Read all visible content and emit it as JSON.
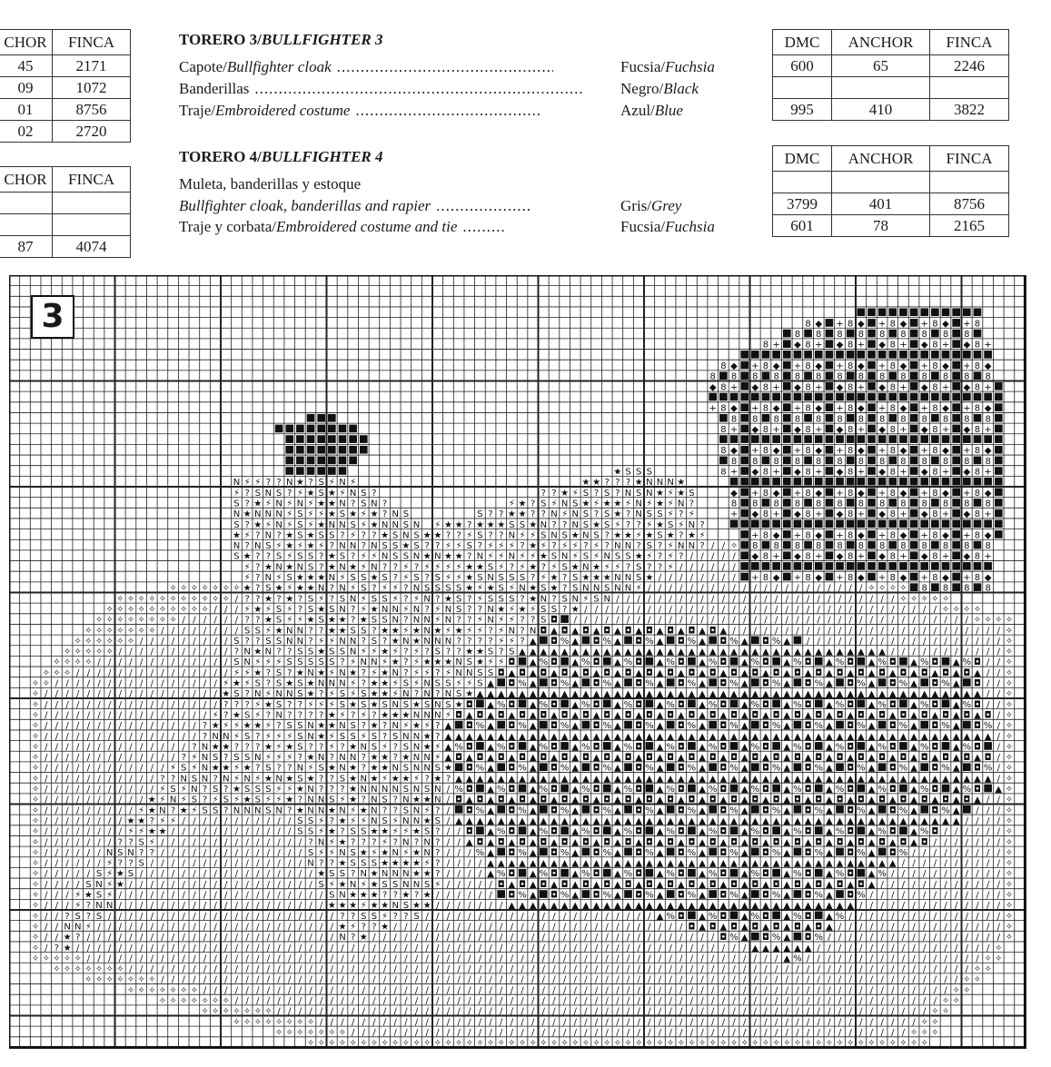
{
  "left_table_1": {
    "headers": [
      "CHOR",
      "FINCA"
    ],
    "rows": [
      [
        "45",
        "2171"
      ],
      [
        "09",
        "1072"
      ],
      [
        "01",
        "8756"
      ],
      [
        "02",
        "2720"
      ]
    ]
  },
  "left_table_2": {
    "headers": [
      "CHOR",
      "FINCA"
    ],
    "rows": [
      [
        "",
        ""
      ],
      [
        "",
        ""
      ],
      [
        "87",
        "4074"
      ]
    ]
  },
  "torero3": {
    "title_es": "TORERO 3/",
    "title_en": "BULLFIGHTER 3",
    "items": [
      {
        "es": "Capote/",
        "en": "Bullfighter cloak",
        "color_es": "Fucsia/",
        "color_en": "Fuchsia"
      },
      {
        "es": "Banderillas",
        "en": "",
        "color_es": "Negro/",
        "color_en": "Black"
      },
      {
        "es": "Traje/",
        "en": "Embroidered costume",
        "color_es": "Azul/",
        "color_en": "Blue"
      }
    ],
    "table": {
      "headers": [
        "DMC",
        "ANCHOR",
        "FINCA"
      ],
      "rows": [
        [
          "600",
          "65",
          "2246"
        ],
        [
          "",
          "",
          ""
        ],
        [
          "995",
          "410",
          "3822"
        ]
      ]
    }
  },
  "torero4": {
    "title_es": "TORERO 4/",
    "title_en": "BULLFIGHTER 4",
    "subtitle": "Muleta, banderillas y estoque",
    "items": [
      {
        "es": "",
        "en": "Bullfighter cloak, banderillas and rapier",
        "color_es": "Gris/",
        "color_en": "Grey"
      },
      {
        "es": "Traje y corbata/",
        "en": "Embroidered costume and tie",
        "color_es": "Fucsia/",
        "color_en": "Fuchsia"
      }
    ],
    "table": {
      "headers": [
        "DMC",
        "ANCHOR",
        "FINCA"
      ],
      "rows": [
        [
          "",
          "",
          ""
        ],
        [
          "3799",
          "401",
          "8756"
        ],
        [
          "601",
          "78",
          "2165"
        ]
      ]
    }
  },
  "chart": {
    "section_number": "3",
    "symbols": {
      "ground": "/",
      "edge": "✧",
      "cloak": "■▲%◘",
      "figure": "S★?N⚡",
      "head": "◆■+8",
      "hat": "■"
    }
  }
}
